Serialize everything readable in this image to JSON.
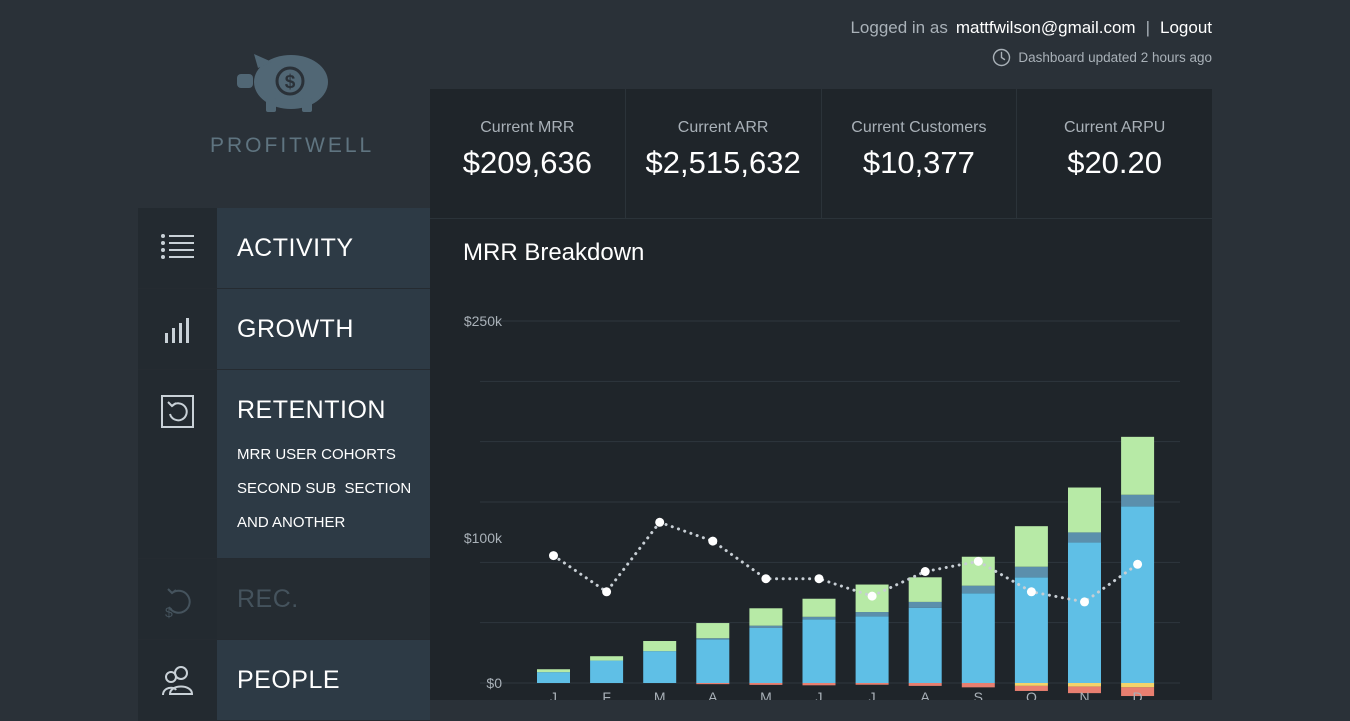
{
  "header": {
    "logged_in_label": "Logged in as",
    "email": "mattfwilson@gmail.com",
    "separator": "|",
    "logout_label": "Logout",
    "updated_text": "Dashboard updated 2 hours ago"
  },
  "brand": {
    "name": "PROFITWELL"
  },
  "sidebar": {
    "items": [
      {
        "label": "ACTIVITY",
        "icon": "list-icon"
      },
      {
        "label": "GROWTH",
        "icon": "bar-chart-icon"
      },
      {
        "label": "RETENTION",
        "icon": "retention-icon",
        "subitems": [
          "MRR USER COHORTS",
          "SECOND SUB  SECTION",
          "AND ANOTHER"
        ]
      },
      {
        "label": "REC. REVENUE",
        "icon": "recurring-dollar-icon",
        "disabled": true
      },
      {
        "label": "PEOPLE",
        "icon": "people-icon"
      }
    ]
  },
  "stats": [
    {
      "label": "Current MRR",
      "value": "$209,636"
    },
    {
      "label": "Current ARR",
      "value": "$2,515,632"
    },
    {
      "label": "Current Customers",
      "value": "$10,377"
    },
    {
      "label": "Current ARPU",
      "value": "$20.20"
    }
  ],
  "colors": {
    "new": "#b7eaa6",
    "expansion": "#5b8fac",
    "existing": "#5fbfe6",
    "yellow": "#f3d36a",
    "churn": "#e87f70",
    "line": "#c7ced4"
  },
  "chart_data": {
    "type": "bar",
    "title": "MRR Breakdown",
    "categories": [
      "J",
      "F",
      "M",
      "A",
      "M",
      "J",
      "J",
      "A",
      "S",
      "O",
      "N",
      "D"
    ],
    "ylim": [
      0,
      250000
    ],
    "yticks": [
      {
        "value": 0,
        "label": "$0"
      },
      {
        "value": 100000,
        "label": "$100k"
      },
      {
        "value": 250000,
        "label": "$250k"
      }
    ],
    "grid": true,
    "series": [
      {
        "key": "existing",
        "values": [
          7500,
          15500,
          22000,
          30000,
          38000,
          44000,
          46000,
          52000,
          62000,
          73000,
          97000,
          122000
        ]
      },
      {
        "key": "expansion",
        "values": [
          0,
          0,
          0,
          900,
          1600,
          1700,
          3000,
          4000,
          5200,
          7300,
          7000,
          8000
        ]
      },
      {
        "key": "new",
        "values": [
          2000,
          3000,
          7000,
          10500,
          12000,
          12500,
          19000,
          17000,
          20000,
          28000,
          31000,
          40000
        ]
      },
      {
        "key": "yellow",
        "values": [
          0,
          0,
          0,
          0,
          0,
          0,
          0,
          0,
          0,
          -2000,
          -2500,
          -3000
        ]
      },
      {
        "key": "churn",
        "values": [
          0,
          0,
          0,
          -800,
          -1300,
          -1600,
          -1200,
          -2000,
          -3000,
          -3500,
          -4500,
          -6000
        ]
      }
    ],
    "line": [
      88000,
      63000,
      111000,
      98000,
      72000,
      72000,
      60000,
      77000,
      84000,
      63000,
      56000,
      82000
    ]
  }
}
